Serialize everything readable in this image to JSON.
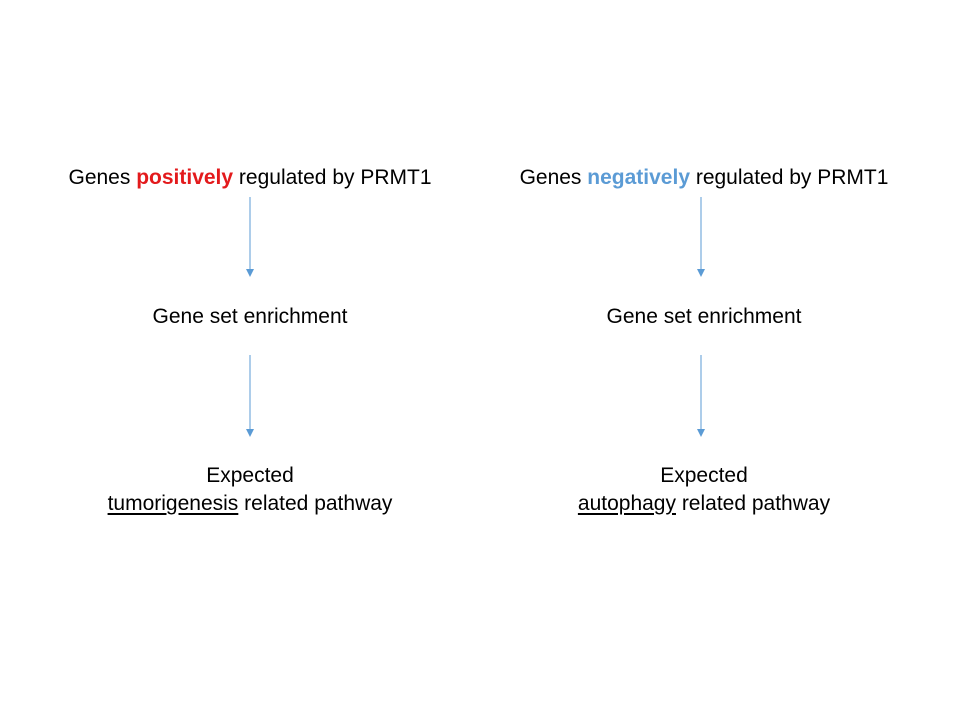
{
  "colors": {
    "positive": "#e31a1c",
    "negative": "#5b9bd5",
    "arrow": "#5b9bd5"
  },
  "left": {
    "header": {
      "prefix": "Genes ",
      "highlight": "positively",
      "suffix": " regulated by PRMT1"
    },
    "middle": "Gene set enrichment",
    "result": {
      "line1": "Expected",
      "keyword": "tumorigenesis",
      "rest": " related pathway"
    }
  },
  "right": {
    "header": {
      "prefix": "Genes ",
      "highlight": "negatively",
      "suffix": " regulated by PRMT1"
    },
    "middle": "Gene set enrichment",
    "result": {
      "line1": "Expected",
      "keyword": "autophagy",
      "rest": " related pathway"
    }
  }
}
